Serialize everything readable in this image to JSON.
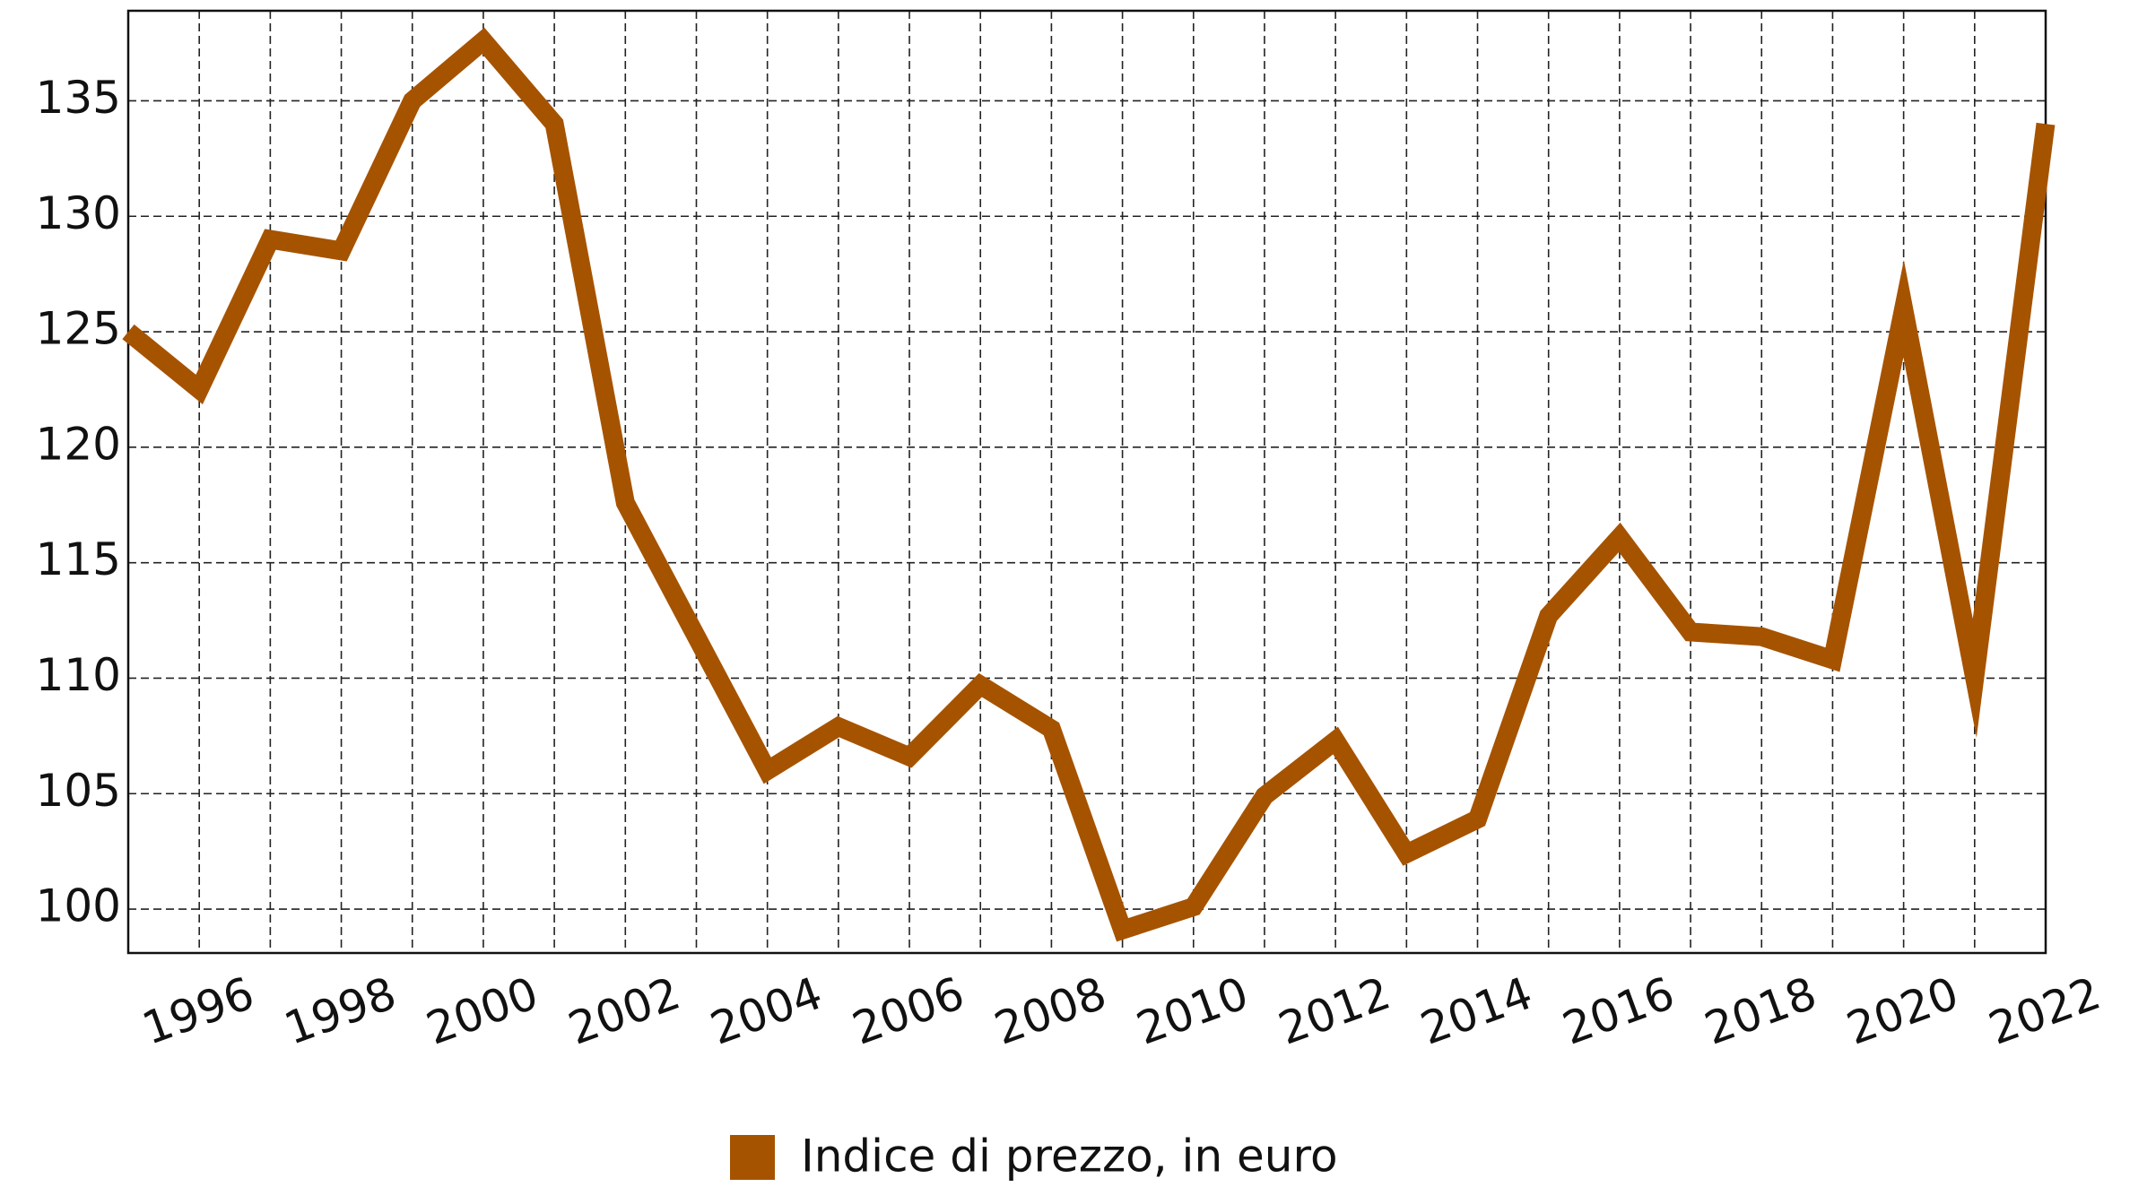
{
  "chart_data": {
    "type": "line",
    "x": [
      1995,
      1996,
      1997,
      1998,
      1999,
      2000,
      2001,
      2002,
      2003,
      2004,
      2005,
      2006,
      2007,
      2008,
      2009,
      2010,
      2011,
      2012,
      2013,
      2014,
      2015,
      2016,
      2017,
      2018,
      2019,
      2020,
      2021,
      2022
    ],
    "series": [
      {
        "name": "Indice di prezzo, in euro",
        "color": "#a65300",
        "values": [
          125.0,
          122.5,
          129.0,
          128.5,
          135.0,
          137.6,
          134.0,
          117.6,
          111.8,
          106.0,
          107.9,
          106.6,
          109.7,
          107.8,
          99.1,
          100.1,
          104.9,
          107.3,
          102.4,
          103.9,
          112.7,
          116.1,
          112.0,
          111.8,
          110.8,
          126.0,
          110.0,
          134.0
        ]
      }
    ],
    "xlim": [
      1995,
      2022
    ],
    "xticks": [
      1996,
      1998,
      2000,
      2002,
      2004,
      2006,
      2008,
      2010,
      2012,
      2014,
      2016,
      2018,
      2020,
      2022
    ],
    "xminor": [
      1997,
      1999,
      2001,
      2003,
      2005,
      2007,
      2009,
      2011,
      2013,
      2015,
      2017,
      2019,
      2021
    ],
    "ylim": [
      98.1,
      138.9
    ],
    "yticks": [
      100,
      105,
      110,
      115,
      120,
      125,
      130,
      135
    ],
    "grid": true,
    "legend": "bottom"
  }
}
